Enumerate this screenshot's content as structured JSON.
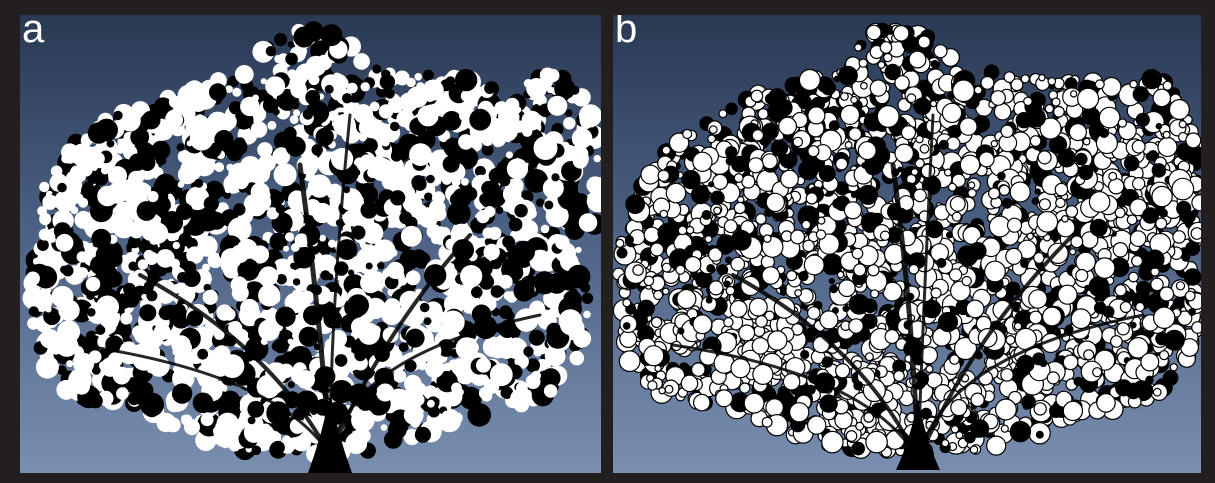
{
  "panels": [
    {
      "label": "a",
      "style": "white foliage with dark fill, black trunk"
    },
    {
      "label": "b",
      "style": "white foliage with black outline, black trunk"
    }
  ],
  "colors": {
    "frame": "#231f20",
    "sky_top": "#2a3953",
    "sky_bottom": "#7a8fb0",
    "foliage": "#ffffff",
    "shadow": "#000000"
  }
}
